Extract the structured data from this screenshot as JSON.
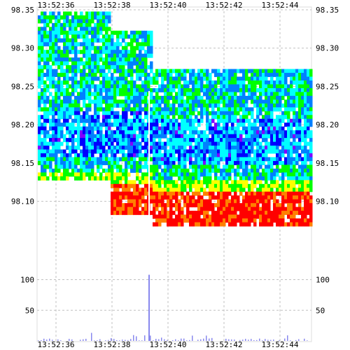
{
  "chart_data": {
    "type": "heatmap",
    "title": "",
    "xlabel": "",
    "ylabel": "",
    "x_ticks": [
      "13:52:36",
      "13:52:38",
      "13:52:40",
      "13:52:42",
      "13:52:44"
    ],
    "y_ticks": [
      "98.35",
      "98.30",
      "98.25",
      "98.20",
      "98.15",
      "98.10"
    ],
    "price_range": [
      98.065,
      98.35
    ],
    "volume_ticks": [
      "100",
      "50"
    ],
    "volume_range": [
      0,
      125
    ],
    "grid": true,
    "colorscale": [
      "#ff0000",
      "#ff8000",
      "#ffff00",
      "#00ff00",
      "#00ffff",
      "#0080ff",
      "#0000ff",
      "#8000ff"
    ],
    "volume_spike": {
      "time": "13:52:39.2",
      "value": 108
    }
  }
}
